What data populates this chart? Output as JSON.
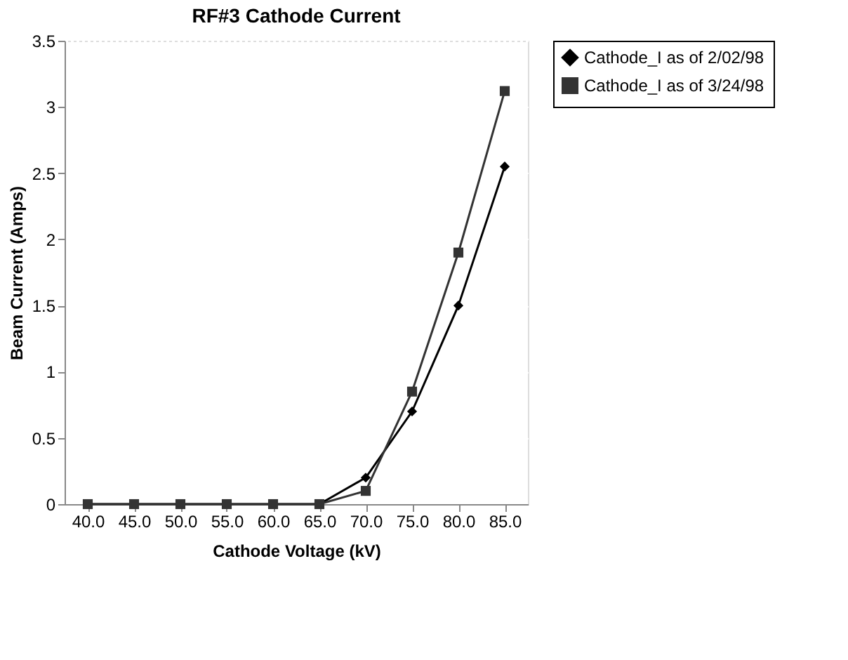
{
  "chart_data": {
    "type": "line",
    "title": "RF#3 Cathode Current",
    "xlabel": "Cathode Voltage (kV)",
    "ylabel": "Beam Current (Amps)",
    "categories": [
      "40.0",
      "45.0",
      "50.0",
      "55.0",
      "60.0",
      "65.0",
      "70.0",
      "75.0",
      "80.0",
      "85.0"
    ],
    "series": [
      {
        "name": "Cathode_I as of 2/02/98",
        "color": "#000000",
        "marker": "diamond",
        "values": [
          0,
          0,
          0,
          0,
          0,
          0,
          0.2,
          0.7,
          1.5,
          2.55
        ]
      },
      {
        "name": "Cathode_I as of 3/24/98",
        "color": "#333333",
        "marker": "square",
        "values": [
          0,
          0,
          0,
          0,
          0,
          0,
          0.1,
          0.85,
          1.9,
          3.12
        ]
      }
    ],
    "ylim": [
      0,
      3.5
    ],
    "yticks": [
      0,
      0.5,
      1,
      1.5,
      2,
      2.5,
      3,
      3.5
    ],
    "grid": "y",
    "legend": "right"
  }
}
